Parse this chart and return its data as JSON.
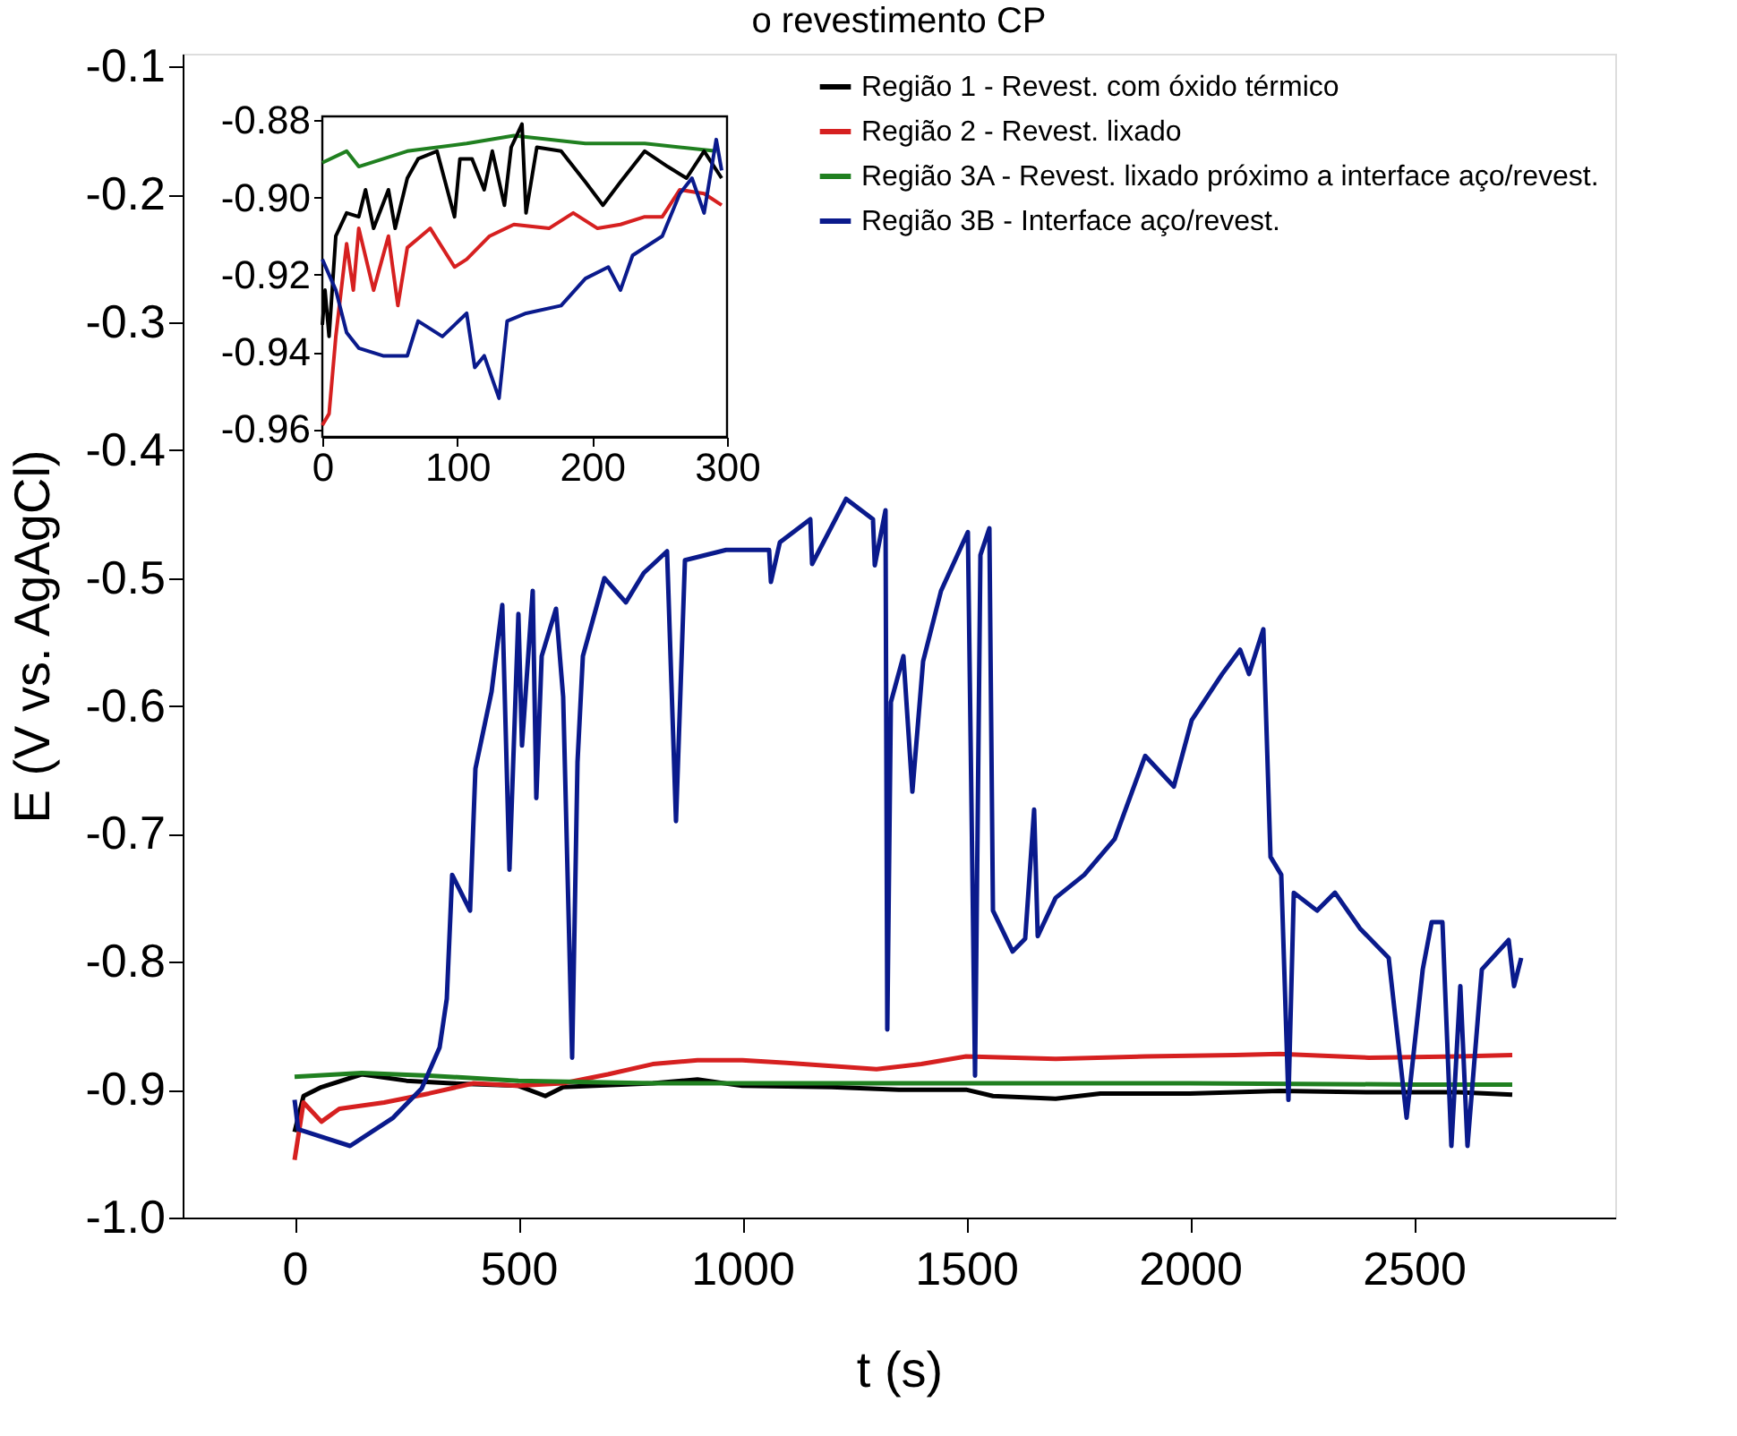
{
  "chart_data": [
    {
      "type": "line",
      "title": "o revestimento CP",
      "xlabel": "t (s)",
      "ylabel": "E (V vs. AgAgCl)",
      "xlim": [
        -250,
        2950
      ],
      "xticks": [
        0,
        500,
        1000,
        1500,
        2000,
        2500
      ],
      "ylim": [
        -1.0,
        -0.09
      ],
      "yticks": [
        {
          "value": -1.0,
          "label": "-1.0"
        },
        -0.9,
        -0.8,
        -0.7,
        -0.6,
        -0.5,
        -0.4,
        -0.3,
        -0.2,
        -0.1
      ],
      "grid": false,
      "legend": "top right",
      "marker": "none",
      "series": [
        {
          "name": "Região 1 - Revest. com óxido térmico",
          "color": "#000000",
          "x": [
            0,
            20,
            60,
            150,
            250,
            350,
            500,
            560,
            600,
            800,
            900,
            1000,
            1200,
            1350,
            1500,
            1560,
            1700,
            1800,
            2000,
            2200,
            2400,
            2600,
            2720
          ],
          "values": [
            -0.933,
            -0.905,
            -0.898,
            -0.888,
            -0.893,
            -0.895,
            -0.897,
            -0.905,
            -0.898,
            -0.895,
            -0.892,
            -0.897,
            -0.898,
            -0.9,
            -0.9,
            -0.905,
            -0.907,
            -0.903,
            -0.903,
            -0.901,
            -0.902,
            -0.902,
            -0.904
          ]
        },
        {
          "name": "Região 2 - Revest. lixado",
          "color": "#d62020",
          "x": [
            0,
            20,
            60,
            100,
            200,
            300,
            400,
            500,
            600,
            700,
            800,
            900,
            1000,
            1100,
            1300,
            1400,
            1500,
            1700,
            1900,
            2100,
            2200,
            2400,
            2600,
            2720
          ],
          "values": [
            -0.955,
            -0.91,
            -0.925,
            -0.915,
            -0.91,
            -0.903,
            -0.895,
            -0.897,
            -0.895,
            -0.888,
            -0.88,
            -0.877,
            -0.877,
            -0.879,
            -0.884,
            -0.88,
            -0.874,
            -0.876,
            -0.874,
            -0.873,
            -0.872,
            -0.875,
            -0.874,
            -0.873
          ]
        },
        {
          "name": "Região 3A - Revest. lixado próximo a interface aço/revest.",
          "color": "#208020",
          "x": [
            0,
            150,
            300,
            500,
            800,
            1000,
            1500,
            2000,
            2500,
            2720
          ],
          "values": [
            -0.89,
            -0.887,
            -0.889,
            -0.893,
            -0.895,
            -0.895,
            -0.895,
            -0.895,
            -0.896,
            -0.896
          ]
        },
        {
          "name": "Região 3B - Interface aço/revest.",
          "color": "#0a1a8c",
          "x": [
            0,
            8,
            124,
            220,
            284,
            324,
            340,
            352,
            392,
            404,
            440,
            464,
            480,
            500,
            508,
            532,
            540,
            552,
            584,
            600,
            620,
            632,
            644,
            692,
            740,
            780,
            832,
            852,
            872,
            964,
            1060,
            1064,
            1084,
            1152,
            1156,
            1232,
            1292,
            1296,
            1320,
            1324,
            1332,
            1360,
            1380,
            1404,
            1444,
            1504,
            1520,
            1532,
            1552,
            1560,
            1604,
            1632,
            1652,
            1660,
            1700,
            1764,
            1832,
            1900,
            1964,
            2004,
            2072,
            2112,
            2132,
            2164,
            2180,
            2204,
            2220,
            2232,
            2284,
            2324,
            2380,
            2444,
            2484,
            2520,
            2540,
            2564,
            2584,
            2604,
            2620,
            2652,
            2712,
            2724,
            2740
          ],
          "values": [
            -0.908,
            -0.931,
            -0.944,
            -0.922,
            -0.899,
            -0.867,
            -0.829,
            -0.732,
            -0.76,
            -0.649,
            -0.589,
            -0.521,
            -0.728,
            -0.528,
            -0.631,
            -0.51,
            -0.672,
            -0.561,
            -0.524,
            -0.593,
            -0.875,
            -0.644,
            -0.561,
            -0.5,
            -0.519,
            -0.496,
            -0.479,
            -0.69,
            -0.486,
            -0.478,
            -0.478,
            -0.503,
            -0.472,
            -0.454,
            -0.489,
            -0.438,
            -0.454,
            -0.49,
            -0.447,
            -0.853,
            -0.597,
            -0.561,
            -0.667,
            -0.565,
            -0.51,
            -0.464,
            -0.889,
            -0.482,
            -0.461,
            -0.76,
            -0.792,
            -0.782,
            -0.681,
            -0.78,
            -0.75,
            -0.732,
            -0.704,
            -0.639,
            -0.663,
            -0.611,
            -0.575,
            -0.556,
            -0.575,
            -0.54,
            -0.718,
            -0.732,
            -0.908,
            -0.746,
            -0.76,
            -0.746,
            -0.774,
            -0.797,
            -0.922,
            -0.806,
            -0.769,
            -0.769,
            -0.944,
            -0.819,
            -0.944,
            -0.806,
            -0.783,
            -0.819,
            -0.797
          ]
        }
      ]
    },
    {
      "type": "line",
      "xlim": [
        0,
        300
      ],
      "xticks": [
        0,
        100,
        200,
        300
      ],
      "ylim": [
        -0.962,
        -0.879
      ],
      "yticks": [
        -0.96,
        -0.94,
        -0.92,
        {
          "value": -0.9,
          "label": "-0.90"
        },
        -0.88
      ],
      "grid": false,
      "marker": "none",
      "series": [
        {
          "color": "#208020",
          "x": [
            0,
            18,
            27,
            63,
            107,
            142,
            195,
            239,
            292
          ],
          "values": [
            -0.891,
            -0.888,
            -0.892,
            -0.888,
            -0.886,
            -0.884,
            -0.886,
            -0.886,
            -0.888
          ]
        },
        {
          "color": "#000000",
          "x": [
            0,
            2,
            5,
            10,
            18,
            27,
            32,
            38,
            49,
            54,
            63,
            71,
            85,
            98,
            102,
            111,
            120,
            126,
            135,
            140,
            148,
            151,
            159,
            177,
            195,
            208,
            221,
            239,
            256,
            270,
            283,
            296
          ],
          "values": [
            -0.933,
            -0.924,
            -0.936,
            -0.91,
            -0.904,
            -0.905,
            -0.898,
            -0.908,
            -0.898,
            -0.908,
            -0.895,
            -0.89,
            -0.888,
            -0.905,
            -0.89,
            -0.89,
            -0.898,
            -0.888,
            -0.902,
            -0.887,
            -0.881,
            -0.904,
            -0.887,
            -0.888,
            -0.896,
            -0.902,
            -0.896,
            -0.888,
            -0.892,
            -0.895,
            -0.888,
            -0.895
          ]
        },
        {
          "color": "#d62020",
          "x": [
            0,
            5,
            10,
            18,
            23,
            27,
            38,
            49,
            56,
            63,
            80,
            98,
            107,
            124,
            142,
            168,
            186,
            204,
            221,
            239,
            252,
            265,
            283,
            296
          ],
          "values": [
            -0.959,
            -0.956,
            -0.936,
            -0.912,
            -0.924,
            -0.908,
            -0.924,
            -0.91,
            -0.928,
            -0.913,
            -0.908,
            -0.918,
            -0.916,
            -0.91,
            -0.907,
            -0.908,
            -0.904,
            -0.908,
            -0.907,
            -0.905,
            -0.905,
            -0.898,
            -0.899,
            -0.902
          ]
        },
        {
          "color": "#0a1a8c",
          "x": [
            0,
            10,
            18,
            27,
            45,
            63,
            71,
            89,
            107,
            113,
            120,
            131,
            137,
            151,
            177,
            195,
            212,
            221,
            230,
            252,
            265,
            274,
            283,
            292,
            296
          ],
          "values": [
            -0.916,
            -0.924,
            -0.935,
            -0.939,
            -0.941,
            -0.941,
            -0.932,
            -0.936,
            -0.93,
            -0.944,
            -0.941,
            -0.952,
            -0.932,
            -0.93,
            -0.928,
            -0.921,
            -0.918,
            -0.924,
            -0.915,
            -0.91,
            -0.899,
            -0.895,
            -0.904,
            -0.885,
            -0.893
          ]
        }
      ]
    }
  ]
}
